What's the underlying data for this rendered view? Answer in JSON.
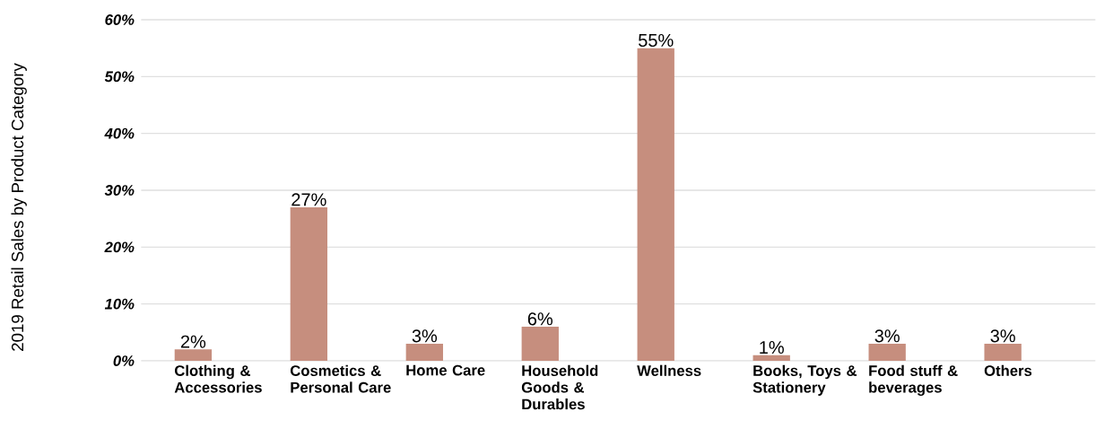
{
  "chart_data": {
    "type": "bar",
    "ylabel": "2019 Retail Sales by Product Category",
    "categories": [
      "Clothing & Accessories",
      "Cosmetics & Personal Care",
      "Home Care",
      "Household Goods & Durables",
      "Wellness",
      "Books, Toys & Stationery",
      "Food stuff & beverages",
      "Others"
    ],
    "values": [
      2,
      27,
      3,
      6,
      55,
      1,
      3,
      3
    ],
    "value_labels": [
      "2%",
      "27%",
      "3%",
      "6%",
      "55%",
      "1%",
      "3%",
      "3%"
    ],
    "color": "#c68e7e",
    "ylim": [
      0,
      60
    ],
    "yticks": [
      {
        "value": 0,
        "label": "0%"
      },
      {
        "value": 10,
        "label": "10%"
      },
      {
        "value": 20,
        "label": "20%"
      },
      {
        "value": 30,
        "label": "30%"
      },
      {
        "value": 40,
        "label": "40%"
      },
      {
        "value": 50,
        "label": "50%"
      },
      {
        "value": 60,
        "label": "60%"
      }
    ],
    "grid": "y"
  }
}
